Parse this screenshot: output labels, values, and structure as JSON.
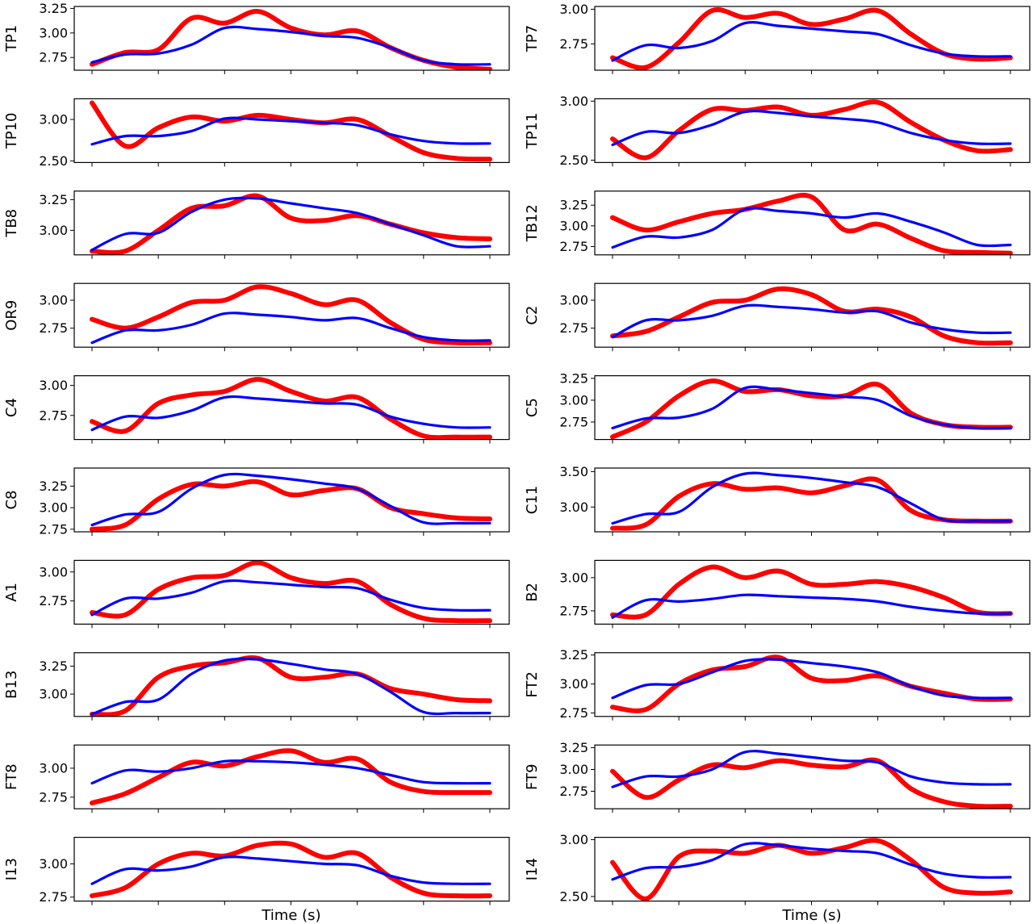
{
  "colors": {
    "predicted": "#ff0000",
    "actual": "#0000ff"
  },
  "x_axis_label": "Time (s)",
  "chart_data": [
    {
      "type": "line",
      "ylabel": "TP1",
      "yticks": [
        2.75,
        3.0,
        3.25
      ],
      "ylim": [
        2.62,
        3.27
      ],
      "x": [
        0,
        1,
        2,
        3,
        4,
        5,
        6,
        7,
        8,
        9,
        10,
        11,
        12
      ],
      "series": [
        {
          "values": [
            2.68,
            2.8,
            2.83,
            3.15,
            3.1,
            3.22,
            3.05,
            2.98,
            3.02,
            2.85,
            2.72,
            2.65,
            2.63
          ]
        },
        {
          "values": [
            2.7,
            2.78,
            2.79,
            2.88,
            3.05,
            3.04,
            3.01,
            2.97,
            2.95,
            2.85,
            2.72,
            2.68,
            2.68
          ]
        }
      ]
    },
    {
      "type": "line",
      "ylabel": "TP7",
      "yticks": [
        2.75,
        3.0
      ],
      "ylim": [
        2.56,
        3.02
      ],
      "x": [
        0,
        1,
        2,
        3,
        4,
        5,
        6,
        7,
        8,
        9,
        10,
        11,
        12
      ],
      "series": [
        {
          "values": [
            2.65,
            2.58,
            2.76,
            2.99,
            2.94,
            2.97,
            2.89,
            2.93,
            2.99,
            2.82,
            2.68,
            2.64,
            2.65
          ]
        },
        {
          "values": [
            2.63,
            2.74,
            2.72,
            2.77,
            2.9,
            2.88,
            2.86,
            2.84,
            2.82,
            2.74,
            2.68,
            2.66,
            2.66
          ]
        }
      ]
    },
    {
      "type": "line",
      "ylabel": "TP10",
      "yticks": [
        2.5,
        3.0
      ],
      "ylim": [
        2.48,
        3.25
      ],
      "x": [
        0,
        1,
        2,
        3,
        4,
        5,
        6,
        7,
        8,
        9,
        10,
        11,
        12
      ],
      "series": [
        {
          "values": [
            3.2,
            2.68,
            2.9,
            3.03,
            2.98,
            3.05,
            3.0,
            2.96,
            3.0,
            2.8,
            2.6,
            2.53,
            2.52
          ]
        },
        {
          "values": [
            2.7,
            2.8,
            2.8,
            2.86,
            3.01,
            3.0,
            2.98,
            2.96,
            2.93,
            2.82,
            2.74,
            2.71,
            2.71
          ]
        }
      ]
    },
    {
      "type": "line",
      "ylabel": "TP11",
      "yticks": [
        2.5,
        3.0
      ],
      "ylim": [
        2.48,
        3.02
      ],
      "x": [
        0,
        1,
        2,
        3,
        4,
        5,
        6,
        7,
        8,
        9,
        10,
        11,
        12
      ],
      "series": [
        {
          "values": [
            2.68,
            2.52,
            2.75,
            2.93,
            2.92,
            2.95,
            2.88,
            2.93,
            2.99,
            2.82,
            2.67,
            2.58,
            2.59
          ]
        },
        {
          "values": [
            2.63,
            2.74,
            2.73,
            2.8,
            2.91,
            2.9,
            2.87,
            2.85,
            2.82,
            2.73,
            2.67,
            2.64,
            2.64
          ]
        }
      ]
    },
    {
      "type": "line",
      "ylabel": "TB8",
      "yticks": [
        3.0,
        3.25
      ],
      "ylim": [
        2.8,
        3.32
      ],
      "x": [
        0,
        1,
        2,
        3,
        4,
        5,
        6,
        7,
        8,
        9,
        10,
        11,
        12
      ],
      "series": [
        {
          "values": [
            2.83,
            2.83,
            3.0,
            3.18,
            3.2,
            3.28,
            3.1,
            3.08,
            3.12,
            3.05,
            2.98,
            2.94,
            2.93
          ]
        },
        {
          "values": [
            2.84,
            2.97,
            2.98,
            3.15,
            3.25,
            3.26,
            3.22,
            3.18,
            3.14,
            3.05,
            2.96,
            2.87,
            2.87
          ]
        }
      ]
    },
    {
      "type": "line",
      "ylabel": "TB12",
      "yticks": [
        2.75,
        3.0,
        3.25
      ],
      "ylim": [
        2.65,
        3.42
      ],
      "x": [
        0,
        1,
        2,
        3,
        4,
        5,
        6,
        7,
        8,
        9,
        10,
        11,
        12
      ],
      "series": [
        {
          "values": [
            3.1,
            2.95,
            3.05,
            3.15,
            3.2,
            3.3,
            3.35,
            2.95,
            3.02,
            2.85,
            2.7,
            2.68,
            2.67
          ]
        },
        {
          "values": [
            2.74,
            2.87,
            2.86,
            2.95,
            3.2,
            3.18,
            3.15,
            3.1,
            3.15,
            3.05,
            2.92,
            2.77,
            2.77
          ]
        }
      ]
    },
    {
      "type": "line",
      "ylabel": "OR9",
      "yticks": [
        2.75,
        3.0
      ],
      "ylim": [
        2.58,
        3.15
      ],
      "x": [
        0,
        1,
        2,
        3,
        4,
        5,
        6,
        7,
        8,
        9,
        10,
        11,
        12
      ],
      "series": [
        {
          "values": [
            2.83,
            2.75,
            2.85,
            2.98,
            3.0,
            3.12,
            3.06,
            2.96,
            3.0,
            2.8,
            2.65,
            2.62,
            2.62
          ]
        },
        {
          "values": [
            2.62,
            2.73,
            2.73,
            2.78,
            2.88,
            2.87,
            2.85,
            2.82,
            2.84,
            2.75,
            2.67,
            2.64,
            2.64
          ]
        }
      ]
    },
    {
      "type": "line",
      "ylabel": "C2",
      "yticks": [
        2.75,
        3.0
      ],
      "ylim": [
        2.58,
        3.15
      ],
      "x": [
        0,
        1,
        2,
        3,
        4,
        5,
        6,
        7,
        8,
        9,
        10,
        11,
        12
      ],
      "series": [
        {
          "values": [
            2.68,
            2.72,
            2.85,
            2.98,
            3.0,
            3.1,
            3.05,
            2.9,
            2.92,
            2.85,
            2.68,
            2.62,
            2.62
          ]
        },
        {
          "values": [
            2.67,
            2.82,
            2.82,
            2.86,
            2.95,
            2.94,
            2.92,
            2.89,
            2.9,
            2.8,
            2.74,
            2.71,
            2.71
          ]
        }
      ]
    },
    {
      "type": "line",
      "ylabel": "C4",
      "yticks": [
        2.75,
        3.0
      ],
      "ylim": [
        2.55,
        3.08
      ],
      "x": [
        0,
        1,
        2,
        3,
        4,
        5,
        6,
        7,
        8,
        9,
        10,
        11,
        12
      ],
      "series": [
        {
          "values": [
            2.7,
            2.62,
            2.85,
            2.92,
            2.95,
            3.05,
            2.95,
            2.87,
            2.9,
            2.72,
            2.58,
            2.57,
            2.57
          ]
        },
        {
          "values": [
            2.63,
            2.74,
            2.73,
            2.79,
            2.9,
            2.89,
            2.87,
            2.85,
            2.84,
            2.74,
            2.68,
            2.65,
            2.65
          ]
        }
      ]
    },
    {
      "type": "line",
      "ylabel": "C5",
      "yticks": [
        2.75,
        3.0,
        3.25
      ],
      "ylim": [
        2.55,
        3.28
      ],
      "x": [
        0,
        1,
        2,
        3,
        4,
        5,
        6,
        7,
        8,
        9,
        10,
        11,
        12
      ],
      "series": [
        {
          "values": [
            2.58,
            2.75,
            3.05,
            3.22,
            3.1,
            3.12,
            3.05,
            3.05,
            3.18,
            2.85,
            2.72,
            2.69,
            2.69
          ]
        },
        {
          "values": [
            2.68,
            2.79,
            2.8,
            2.9,
            3.14,
            3.12,
            3.08,
            3.04,
            3.0,
            2.82,
            2.72,
            2.68,
            2.68
          ]
        }
      ]
    },
    {
      "type": "line",
      "ylabel": "C8",
      "yticks": [
        2.75,
        3.0,
        3.25
      ],
      "ylim": [
        2.72,
        3.46
      ],
      "x": [
        0,
        1,
        2,
        3,
        4,
        5,
        6,
        7,
        8,
        9,
        10,
        11,
        12
      ],
      "series": [
        {
          "values": [
            2.75,
            2.8,
            3.1,
            3.27,
            3.25,
            3.3,
            3.15,
            3.2,
            3.22,
            3.0,
            2.93,
            2.88,
            2.87
          ]
        },
        {
          "values": [
            2.8,
            2.92,
            2.95,
            3.22,
            3.38,
            3.37,
            3.33,
            3.28,
            3.22,
            3.02,
            2.83,
            2.82,
            2.82
          ]
        }
      ]
    },
    {
      "type": "line",
      "ylabel": "C11",
      "yticks": [
        3.0,
        3.5
      ],
      "ylim": [
        2.65,
        3.55
      ],
      "x": [
        0,
        1,
        2,
        3,
        4,
        5,
        6,
        7,
        8,
        9,
        10,
        11,
        12
      ],
      "series": [
        {
          "values": [
            2.7,
            2.75,
            3.15,
            3.33,
            3.25,
            3.27,
            3.2,
            3.3,
            3.38,
            2.95,
            2.82,
            2.8,
            2.8
          ]
        },
        {
          "values": [
            2.77,
            2.9,
            2.93,
            3.28,
            3.47,
            3.45,
            3.41,
            3.35,
            3.28,
            3.05,
            2.82,
            2.8,
            2.8
          ]
        }
      ]
    },
    {
      "type": "line",
      "ylabel": "A1",
      "yticks": [
        2.75,
        3.0
      ],
      "ylim": [
        2.55,
        3.1
      ],
      "x": [
        0,
        1,
        2,
        3,
        4,
        5,
        6,
        7,
        8,
        9,
        10,
        11,
        12
      ],
      "series": [
        {
          "values": [
            2.65,
            2.63,
            2.85,
            2.95,
            2.97,
            3.08,
            2.95,
            2.9,
            2.92,
            2.72,
            2.6,
            2.58,
            2.58
          ]
        },
        {
          "values": [
            2.63,
            2.77,
            2.77,
            2.82,
            2.92,
            2.91,
            2.89,
            2.87,
            2.86,
            2.76,
            2.69,
            2.67,
            2.67
          ]
        }
      ]
    },
    {
      "type": "line",
      "ylabel": "B2",
      "yticks": [
        2.75,
        3.0
      ],
      "ylim": [
        2.65,
        3.13
      ],
      "x": [
        0,
        1,
        2,
        3,
        4,
        5,
        6,
        7,
        8,
        9,
        10,
        11,
        12
      ],
      "series": [
        {
          "values": [
            2.72,
            2.72,
            2.95,
            3.08,
            3.0,
            3.05,
            2.95,
            2.95,
            2.97,
            2.93,
            2.85,
            2.74,
            2.73
          ]
        },
        {
          "values": [
            2.7,
            2.83,
            2.82,
            2.84,
            2.87,
            2.86,
            2.85,
            2.84,
            2.82,
            2.78,
            2.75,
            2.73,
            2.73
          ]
        }
      ]
    },
    {
      "type": "line",
      "ylabel": "B13",
      "yticks": [
        3.0,
        3.25
      ],
      "ylim": [
        2.8,
        3.37
      ],
      "x": [
        0,
        1,
        2,
        3,
        4,
        5,
        6,
        7,
        8,
        9,
        10,
        11,
        12
      ],
      "series": [
        {
          "values": [
            2.82,
            2.85,
            3.15,
            3.25,
            3.28,
            3.32,
            3.15,
            3.15,
            3.18,
            3.05,
            3.0,
            2.95,
            2.94
          ]
        },
        {
          "values": [
            2.82,
            2.93,
            2.95,
            3.18,
            3.3,
            3.31,
            3.27,
            3.22,
            3.18,
            3.02,
            2.84,
            2.83,
            2.83
          ]
        }
      ]
    },
    {
      "type": "line",
      "ylabel": "FT2",
      "yticks": [
        2.75,
        3.0,
        3.25
      ],
      "ylim": [
        2.72,
        3.27
      ],
      "x": [
        0,
        1,
        2,
        3,
        4,
        5,
        6,
        7,
        8,
        9,
        10,
        11,
        12
      ],
      "series": [
        {
          "values": [
            2.8,
            2.78,
            3.0,
            3.12,
            3.15,
            3.23,
            3.05,
            3.03,
            3.07,
            2.98,
            2.92,
            2.87,
            2.87
          ]
        },
        {
          "values": [
            2.88,
            2.99,
            3.0,
            3.1,
            3.2,
            3.21,
            3.18,
            3.15,
            3.1,
            2.98,
            2.9,
            2.88,
            2.88
          ]
        }
      ]
    },
    {
      "type": "line",
      "ylabel": "FT8",
      "yticks": [
        2.75,
        3.0
      ],
      "ylim": [
        2.65,
        3.2
      ],
      "x": [
        0,
        1,
        2,
        3,
        4,
        5,
        6,
        7,
        8,
        9,
        10,
        11,
        12
      ],
      "series": [
        {
          "values": [
            2.7,
            2.78,
            2.92,
            3.05,
            3.02,
            3.1,
            3.15,
            3.05,
            3.08,
            2.88,
            2.8,
            2.79,
            2.79
          ]
        },
        {
          "values": [
            2.87,
            2.98,
            2.97,
            3.0,
            3.06,
            3.06,
            3.05,
            3.03,
            3.0,
            2.94,
            2.88,
            2.87,
            2.87
          ]
        }
      ]
    },
    {
      "type": "line",
      "ylabel": "FT9",
      "yticks": [
        2.75,
        3.0,
        3.25
      ],
      "ylim": [
        2.55,
        3.28
      ],
      "x": [
        0,
        1,
        2,
        3,
        4,
        5,
        6,
        7,
        8,
        9,
        10,
        11,
        12
      ],
      "series": [
        {
          "values": [
            2.98,
            2.68,
            2.88,
            3.05,
            3.02,
            3.1,
            3.05,
            3.03,
            3.1,
            2.78,
            2.63,
            2.58,
            2.58
          ]
        },
        {
          "values": [
            2.8,
            2.92,
            2.92,
            3.0,
            3.2,
            3.18,
            3.14,
            3.1,
            3.08,
            2.92,
            2.85,
            2.83,
            2.83
          ]
        }
      ]
    },
    {
      "type": "line",
      "ylabel": "I13",
      "yticks": [
        2.75,
        3.0
      ],
      "ylim": [
        2.72,
        3.2
      ],
      "x": [
        0,
        1,
        2,
        3,
        4,
        5,
        6,
        7,
        8,
        9,
        10,
        11,
        12
      ],
      "series": [
        {
          "values": [
            2.76,
            2.82,
            3.0,
            3.08,
            3.06,
            3.14,
            3.15,
            3.05,
            3.08,
            2.9,
            2.78,
            2.76,
            2.76
          ]
        },
        {
          "values": [
            2.85,
            2.96,
            2.95,
            2.98,
            3.05,
            3.04,
            3.02,
            3.0,
            2.99,
            2.91,
            2.86,
            2.85,
            2.85
          ]
        }
      ]
    },
    {
      "type": "line",
      "ylabel": "I14",
      "yticks": [
        2.5,
        3.0
      ],
      "ylim": [
        2.46,
        3.02
      ],
      "x": [
        0,
        1,
        2,
        3,
        4,
        5,
        6,
        7,
        8,
        9,
        10,
        11,
        12
      ],
      "series": [
        {
          "values": [
            2.8,
            2.48,
            2.85,
            2.9,
            2.88,
            2.95,
            2.88,
            2.93,
            2.99,
            2.82,
            2.58,
            2.53,
            2.54
          ]
        },
        {
          "values": [
            2.65,
            2.75,
            2.76,
            2.82,
            2.96,
            2.95,
            2.92,
            2.9,
            2.88,
            2.78,
            2.7,
            2.67,
            2.67
          ]
        }
      ]
    }
  ]
}
